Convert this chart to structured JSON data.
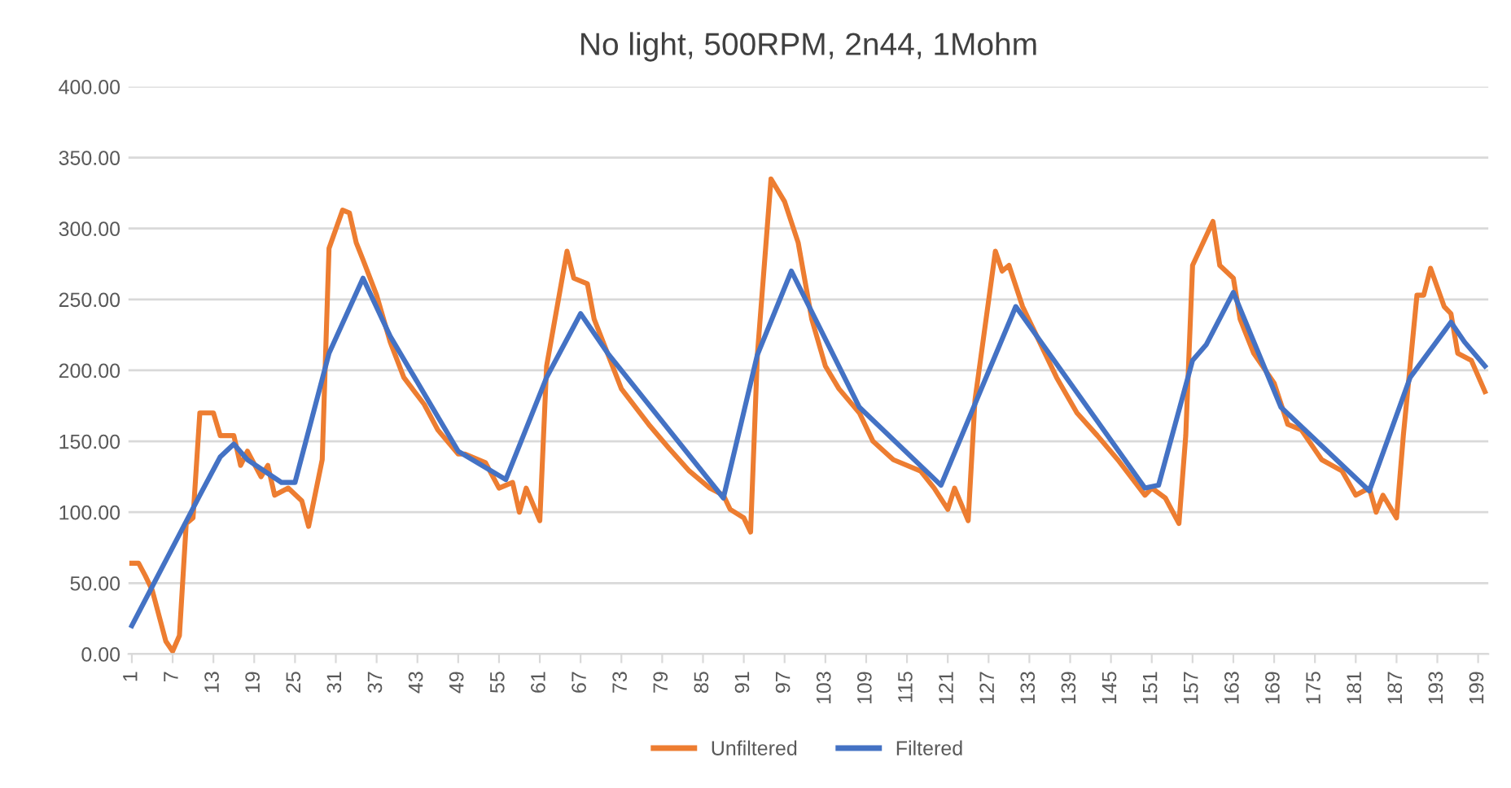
{
  "chart_data": {
    "type": "line",
    "title": "No light, 500RPM, 2n44, 1Mohm",
    "xlim": [
      0.5,
      200.5
    ],
    "xticks": [
      1,
      7,
      13,
      19,
      25,
      31,
      37,
      43,
      49,
      55,
      61,
      67,
      73,
      79,
      85,
      91,
      97,
      103,
      109,
      115,
      121,
      127,
      133,
      139,
      145,
      151,
      157,
      163,
      169,
      175,
      181,
      187,
      193,
      199
    ],
    "ylim": [
      0,
      400
    ],
    "yticks": [
      {
        "value": 0,
        "label": "0.00"
      },
      {
        "value": 50,
        "label": "50.00"
      },
      {
        "value": 100,
        "label": "100.00"
      },
      {
        "value": 150,
        "label": "150.00"
      },
      {
        "value": 200,
        "label": "200.00"
      },
      {
        "value": 250,
        "label": "250.00"
      },
      {
        "value": 300,
        "label": "300.00"
      },
      {
        "value": 350,
        "label": "350.00"
      },
      {
        "value": 400,
        "label": "400.00"
      }
    ],
    "grid": "y",
    "legend": "bottom",
    "marker": "none",
    "line_style": "solid",
    "series": [
      {
        "name": "Unfiltered",
        "color": "#ed7d31",
        "x": [
          1,
          2,
          3,
          4,
          6,
          7,
          8,
          9,
          10,
          11,
          13,
          14,
          16,
          17,
          18,
          20,
          21,
          22,
          24,
          26,
          27,
          29,
          30,
          32,
          33,
          34,
          35,
          37,
          39,
          41,
          44,
          46,
          49,
          50,
          53,
          55,
          57,
          58,
          59,
          61,
          62,
          65,
          66,
          68,
          69,
          73,
          77,
          80,
          83,
          86,
          88,
          89,
          91,
          92,
          93,
          95,
          97,
          99,
          101,
          103,
          105,
          108,
          110,
          113,
          117,
          119,
          121,
          122,
          124,
          125,
          128,
          129,
          130,
          132,
          137,
          140,
          143,
          146,
          150,
          151,
          153,
          155,
          156,
          157,
          160,
          161,
          163,
          164,
          166,
          169,
          171,
          173,
          176,
          179,
          181,
          183,
          184,
          185,
          187,
          188,
          190,
          191,
          192,
          194,
          195,
          196,
          198,
          200
        ],
        "values": [
          64,
          64,
          55,
          45,
          9,
          2,
          13,
          92,
          96,
          170,
          170,
          154,
          154,
          133,
          143,
          125,
          133,
          112,
          117,
          108,
          90,
          137,
          286,
          313,
          311,
          290,
          278,
          253,
          220,
          195,
          176,
          158,
          141,
          141,
          135,
          117,
          121,
          100,
          117,
          94,
          203,
          284,
          265,
          261,
          236,
          187,
          162,
          145,
          129,
          117,
          112,
          102,
          96,
          86,
          211,
          335,
          319,
          290,
          236,
          203,
          187,
          170,
          150,
          137,
          129,
          117,
          102,
          117,
          94,
          179,
          284,
          270,
          274,
          245,
          195,
          170,
          154,
          137,
          112,
          117,
          110,
          92,
          154,
          274,
          305,
          274,
          265,
          236,
          212,
          191,
          162,
          158,
          137,
          129,
          112,
          117,
          100,
          112,
          96,
          154,
          253,
          253,
          272,
          245,
          240,
          212,
          207,
          185
        ]
      },
      {
        "name": "Filtered",
        "color": "#4472c4",
        "x": [
          1,
          11,
          14,
          16,
          18,
          23,
          25,
          30,
          35,
          39,
          49,
          56,
          62,
          67,
          71,
          88,
          93,
          98,
          108,
          120,
          131,
          150,
          152,
          157,
          159,
          163,
          170,
          183,
          189,
          195,
          197,
          200
        ],
        "values": [
          20,
          112,
          139,
          148,
          137,
          121,
          121,
          212,
          265,
          224,
          143,
          123,
          195,
          240,
          212,
          110,
          211,
          270,
          174,
          119,
          245,
          117,
          119,
          207,
          218,
          255,
          174,
          115,
          195,
          234,
          220,
          203
        ]
      }
    ]
  }
}
